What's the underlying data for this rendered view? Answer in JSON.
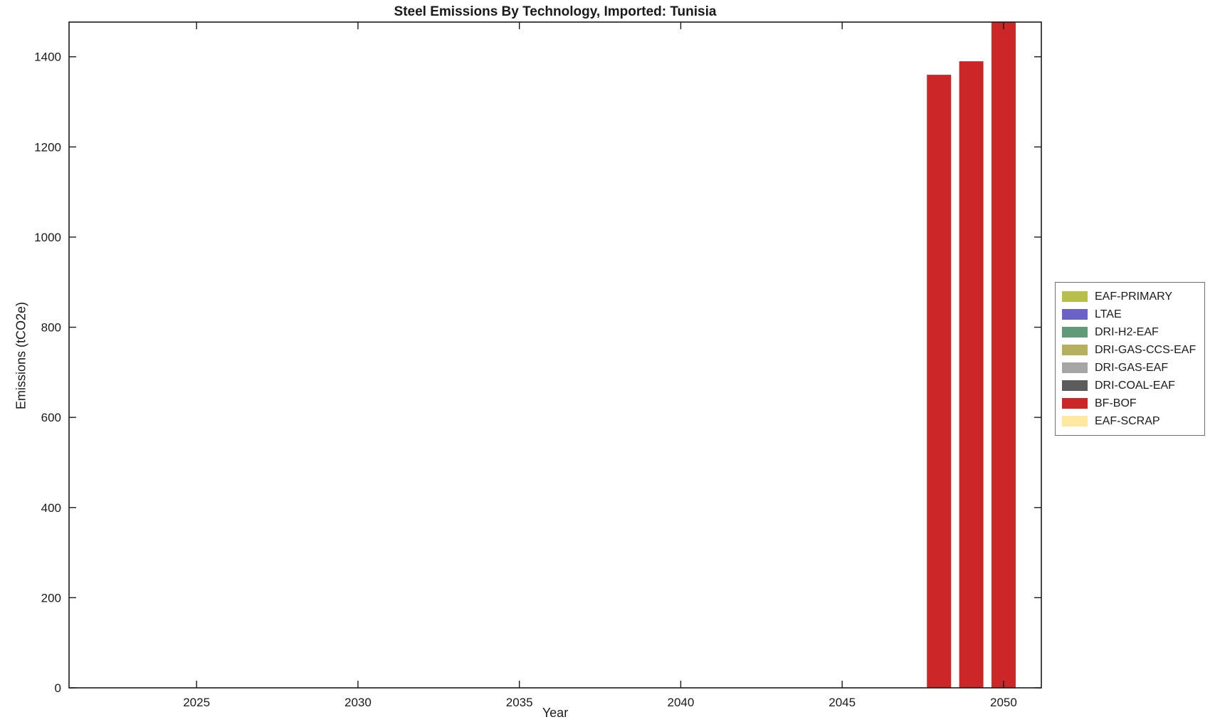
{
  "chart_data": {
    "type": "bar",
    "title": "Steel Emissions By Technology, Imported: Tunisia",
    "xlabel": "Year",
    "ylabel": "Emissions (tCO2e)",
    "xlim": [
      2021.05,
      2051.17
    ],
    "ylim": [
      0,
      1477
    ],
    "xticks": [
      2025,
      2030,
      2035,
      2040,
      2045,
      2050
    ],
    "yticks": [
      0,
      200,
      400,
      600,
      800,
      1000,
      1200,
      1400
    ],
    "grid": false,
    "legend_position": "right-outside",
    "bar_width_years": 0.75,
    "series": [
      {
        "name": "BF-BOF",
        "color": "#cc2727",
        "x": [
          2048,
          2049,
          2050
        ],
        "values": [
          1360,
          1390,
          1477
        ],
        "note": "2050 bar is clipped at the top edge of the axes; all other technologies show zero emissions"
      }
    ],
    "legend": [
      {
        "label": "EAF-PRIMARY",
        "color": "#b7bf4a"
      },
      {
        "label": "LTAE",
        "color": "#6a62c4"
      },
      {
        "label": "DRI-H2-EAF",
        "color": "#5f9977"
      },
      {
        "label": "DRI-GAS-CCS-EAF",
        "color": "#b6b05e"
      },
      {
        "label": "DRI-GAS-EAF",
        "color": "#a6a6a6"
      },
      {
        "label": "DRI-COAL-EAF",
        "color": "#5c5c5c"
      },
      {
        "label": "BF-BOF",
        "color": "#cc2727"
      },
      {
        "label": "EAF-SCRAP",
        "color": "#ffe9a0"
      }
    ],
    "axis_color": "#1a1a1a"
  }
}
